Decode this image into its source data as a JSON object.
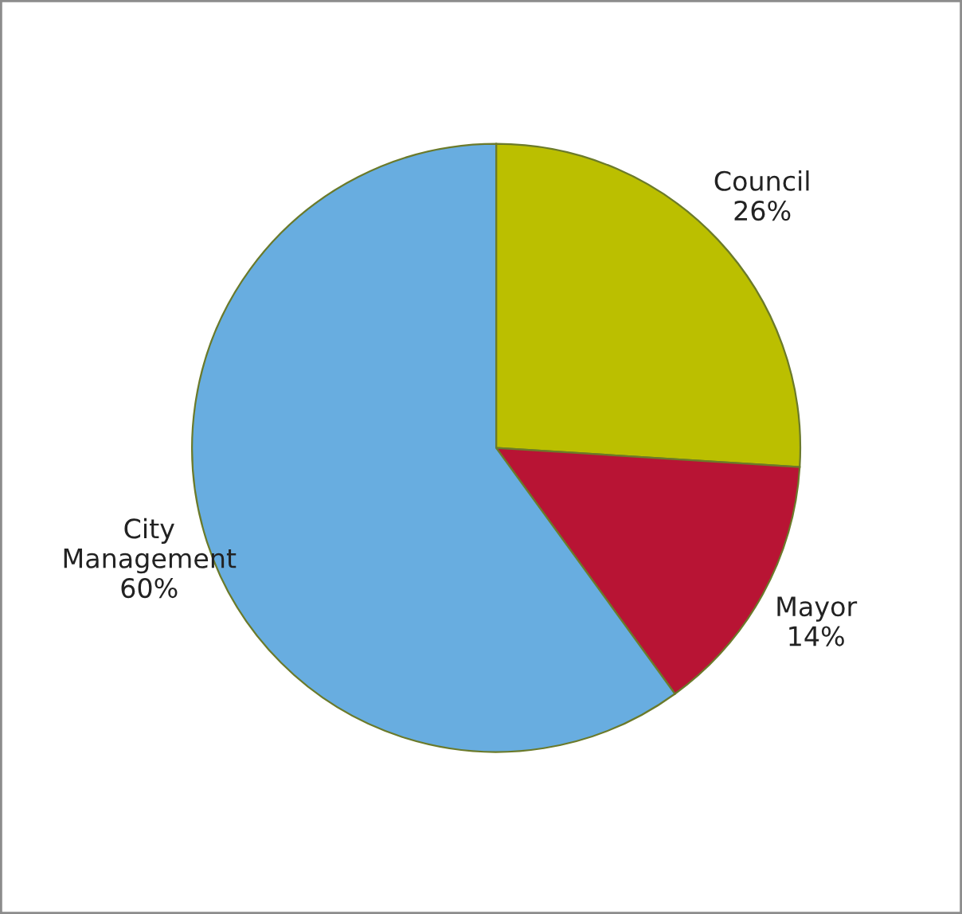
{
  "chart_data": {
    "type": "pie",
    "categories": [
      "Council",
      "Mayor",
      "City Management"
    ],
    "values": [
      26,
      14,
      60
    ],
    "value_labels": [
      "26%",
      "14%",
      "60%"
    ],
    "colors": [
      "#bbbf00",
      "#b81434",
      "#68ade0"
    ],
    "legend": false
  }
}
